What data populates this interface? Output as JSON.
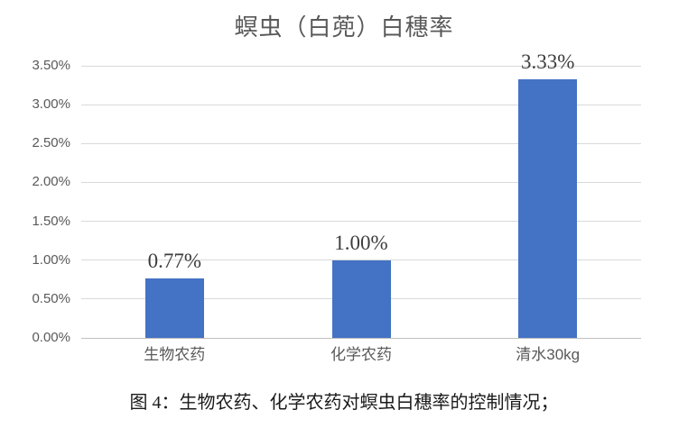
{
  "chart_data": {
    "type": "bar",
    "title": "螟虫（白蔸）白穗率",
    "categories": [
      "生物农药",
      "化学农药",
      "清水30kg"
    ],
    "values": [
      0.77,
      1.0,
      3.33
    ],
    "data_labels": [
      "0.77%",
      "1.00%",
      "3.33%"
    ],
    "ylim": [
      0,
      3.5
    ],
    "ytick_step": 0.5,
    "ytick_labels": [
      "0.00%",
      "0.50%",
      "1.00%",
      "1.50%",
      "2.00%",
      "2.50%",
      "3.00%",
      "3.50%"
    ],
    "grid": true,
    "legend": false,
    "bar_color": "#4472C4",
    "gridline_color": "#D9D9D9",
    "axis_line_color": "#BFBFBF",
    "title_color": "#595959",
    "axis_text_color": "#595959",
    "data_label_color": "#3d3d3d"
  },
  "caption": "图 4：生物农药、化学农药对螟虫白穗率的控制情况；"
}
